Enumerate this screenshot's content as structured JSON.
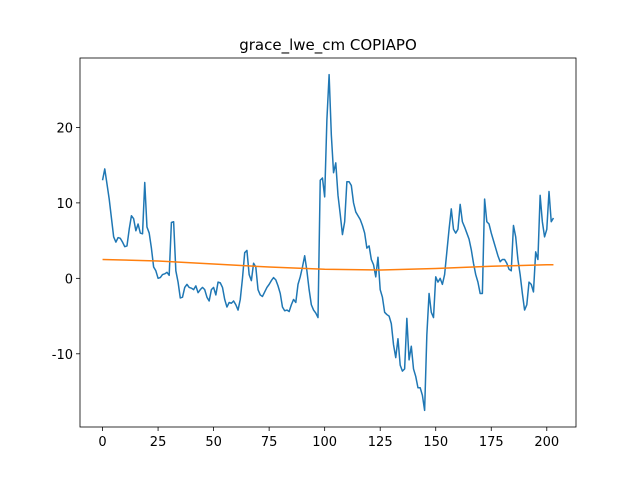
{
  "chart_data": {
    "type": "line",
    "title": "grace_lwe_cm COPIAPO",
    "xlim": [
      -10.15,
      213.15
    ],
    "ylim": [
      -19.7,
      29.2
    ],
    "xticks": [
      0,
      25,
      50,
      75,
      100,
      125,
      150,
      175,
      200
    ],
    "yticks": [
      -10,
      0,
      10,
      20
    ],
    "series": [
      {
        "color": "#1f77b4",
        "x": [
          0,
          1,
          2,
          3,
          4,
          5,
          6,
          7,
          8,
          9,
          10,
          11,
          12,
          13,
          14,
          15,
          16,
          17,
          18,
          19,
          20,
          21,
          22,
          23,
          24,
          25,
          26,
          27,
          28,
          29,
          30,
          31,
          32,
          33,
          34,
          35,
          36,
          37,
          38,
          39,
          40,
          41,
          42,
          43,
          44,
          45,
          46,
          47,
          48,
          49,
          50,
          51,
          52,
          53,
          54,
          55,
          56,
          57,
          58,
          59,
          60,
          61,
          62,
          63,
          64,
          65,
          66,
          67,
          68,
          69,
          70,
          71,
          72,
          73,
          74,
          75,
          76,
          77,
          78,
          79,
          80,
          81,
          82,
          83,
          84,
          85,
          86,
          87,
          88,
          89,
          90,
          91,
          92,
          93,
          94,
          95,
          96,
          97,
          98,
          99,
          100,
          101,
          102,
          103,
          104,
          105,
          106,
          107,
          108,
          109,
          110,
          111,
          112,
          113,
          114,
          115,
          116,
          117,
          118,
          119,
          120,
          121,
          122,
          123,
          124,
          125,
          126,
          127,
          128,
          129,
          130,
          131,
          132,
          133,
          134,
          135,
          136,
          137,
          138,
          139,
          140,
          141,
          142,
          143,
          144,
          145,
          146,
          147,
          148,
          149,
          150,
          151,
          152,
          153,
          154,
          155,
          156,
          157,
          158,
          159,
          160,
          161,
          162,
          163,
          164,
          165,
          166,
          167,
          168,
          169,
          170,
          171,
          172,
          173,
          174,
          175,
          176,
          177,
          178,
          179,
          180,
          181,
          182,
          183,
          184,
          185,
          186,
          187,
          188,
          189,
          190,
          191,
          192,
          193,
          194,
          195,
          196,
          197,
          198,
          199,
          200,
          201,
          202,
          203
        ],
        "values": [
          13,
          14.5,
          12.5,
          10.5,
          8,
          5.5,
          4.8,
          5.4,
          5.3,
          4.8,
          4.2,
          4.3,
          6.5,
          8.3,
          7.9,
          6.3,
          7.2,
          6,
          5.9,
          12.7,
          6.8,
          6,
          4,
          1.5,
          1,
          0,
          0.1,
          0.5,
          0.6,
          0.8,
          0.4,
          7.4,
          7.5,
          1,
          -0.5,
          -2.6,
          -2.5,
          -1.2,
          -0.8,
          -1.2,
          -1.3,
          -1.5,
          -1,
          -1.9,
          -1.5,
          -1.2,
          -1.5,
          -2.5,
          -3,
          -1.5,
          -1.2,
          -2.2,
          -0.5,
          -0.6,
          -1.2,
          -2.8,
          -3.8,
          -3.2,
          -3.3,
          -3,
          -3.5,
          -4.2,
          -2.8,
          0,
          3.4,
          3.7,
          0.5,
          -0.3,
          2,
          1.5,
          -1.5,
          -2.2,
          -2.4,
          -1.8,
          -1.2,
          -0.8,
          -0.3,
          0.1,
          -0.2,
          -1,
          -2,
          -3.8,
          -4.3,
          -4.2,
          -4.4,
          -3.5,
          -2.8,
          -3.2,
          -0.8,
          0.2,
          1.5,
          3,
          1,
          -1.5,
          -3.5,
          -4.2,
          -4.6,
          -5.2,
          13,
          13.3,
          10.8,
          21,
          27,
          19,
          14,
          15.3,
          11,
          8.5,
          5.8,
          7.5,
          12.8,
          12.8,
          12.3,
          10,
          8.8,
          8.3,
          7.8,
          7,
          6,
          4,
          4.3,
          2.5,
          1.8,
          0.2,
          2.8,
          -1.5,
          -2.5,
          -4.5,
          -4.8,
          -5,
          -6,
          -8.8,
          -10.5,
          -8,
          -11.5,
          -12.3,
          -12,
          -5.3,
          -10.8,
          -9,
          -12,
          -13,
          -14.5,
          -14.5,
          -15.5,
          -17.5,
          -7.5,
          -2,
          -4.5,
          -5.2,
          0.2,
          -0.5,
          0,
          -0.8,
          0.5,
          3.5,
          6.5,
          9.2,
          6.5,
          6,
          6.5,
          9.8,
          7.5,
          6.8,
          6,
          5.2,
          3.8,
          2,
          0.5,
          -0.5,
          -2,
          -2,
          10.5,
          7.5,
          7.2,
          6,
          5,
          4,
          3,
          2.2,
          2.5,
          2.5,
          2,
          1.2,
          1,
          7,
          5.5,
          2.5,
          0.5,
          -2,
          -4.2,
          -3.5,
          -0.5,
          -0.8,
          -1.8,
          3.5,
          2.5,
          11,
          7.5,
          5.5,
          6.5,
          11.5,
          7.5,
          8
        ]
      },
      {
        "color": "#ff7f0e",
        "x": [
          0,
          25,
          50,
          75,
          100,
          125,
          150,
          175,
          200,
          203
        ],
        "values": [
          2.5,
          2.3,
          1.9,
          1.5,
          1.2,
          1.1,
          1.3,
          1.6,
          1.8,
          1.8
        ]
      }
    ]
  }
}
